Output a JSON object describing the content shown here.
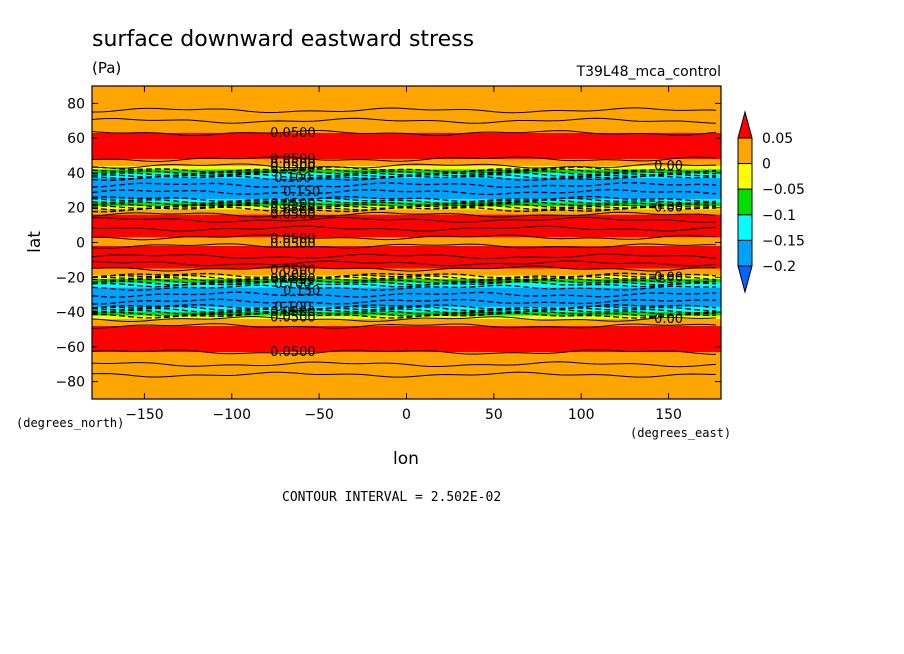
{
  "chart_data": {
    "type": "heatmap",
    "title": "surface downward eastward stress",
    "units": "(Pa)",
    "experiment": "T39L48_mca_control",
    "xlabel": "lon",
    "ylabel": "lat",
    "x_units": "(degrees_east)",
    "y_units": "(degrees_north)",
    "xlim": [
      -180,
      180
    ],
    "ylim": [
      -90,
      90
    ],
    "x_ticks": [
      -150,
      -100,
      -50,
      0,
      50,
      100,
      150
    ],
    "x_tick_labels": [
      "−150",
      "−100",
      "−50",
      "0",
      "50",
      "100",
      "150"
    ],
    "y_ticks": [
      80,
      60,
      40,
      20,
      0,
      -20,
      -40,
      -60,
      -80
    ],
    "y_tick_labels": [
      "80",
      "60",
      "40",
      "20",
      "0",
      "−20",
      "−40",
      "−60",
      "−80"
    ],
    "colorbar": {
      "levels": [
        0.05,
        0,
        -0.05,
        -0.1,
        -0.15,
        -0.2
      ],
      "labels": [
        "0.05",
        "0",
        "−0.05",
        "−0.1",
        "−0.15",
        "−0.2"
      ],
      "colors": [
        "#ff0000",
        "#ffa500",
        "#ffff00",
        "#00e000",
        "#00ffff",
        "#00a0ff",
        "#0064ff"
      ]
    },
    "bands": [
      {
        "lat_max": 90,
        "lat_min": 63,
        "value_class": 1
      },
      {
        "lat_max": 63,
        "lat_min": 48,
        "value_class": 0
      },
      {
        "lat_max": 48,
        "lat_min": 44,
        "value_class": 1
      },
      {
        "lat_max": 44,
        "lat_min": 42,
        "value_class": 2
      },
      {
        "lat_max": 42,
        "lat_min": 40,
        "value_class": 3
      },
      {
        "lat_max": 40,
        "lat_min": 37,
        "value_class": 4
      },
      {
        "lat_max": 37,
        "lat_min": 25,
        "value_class": 5
      },
      {
        "lat_max": 25,
        "lat_min": 23,
        "value_class": 4
      },
      {
        "lat_max": 23,
        "lat_min": 21,
        "value_class": 3
      },
      {
        "lat_max": 21,
        "lat_min": 19,
        "value_class": 2
      },
      {
        "lat_max": 19,
        "lat_min": 16,
        "value_class": 1
      },
      {
        "lat_max": 16,
        "lat_min": 3,
        "value_class": 0
      },
      {
        "lat_max": 3,
        "lat_min": -2,
        "value_class": 1
      },
      {
        "lat_max": -2,
        "lat_min": -15,
        "value_class": 0
      },
      {
        "lat_max": -15,
        "lat_min": -19,
        "value_class": 1
      },
      {
        "lat_max": -19,
        "lat_min": -21,
        "value_class": 2
      },
      {
        "lat_max": -21,
        "lat_min": -23,
        "value_class": 3
      },
      {
        "lat_max": -23,
        "lat_min": -26,
        "value_class": 4
      },
      {
        "lat_max": -26,
        "lat_min": -37,
        "value_class": 5
      },
      {
        "lat_max": -37,
        "lat_min": -40,
        "value_class": 4
      },
      {
        "lat_max": -40,
        "lat_min": -42,
        "value_class": 3
      },
      {
        "lat_max": -42,
        "lat_min": -44,
        "value_class": 2
      },
      {
        "lat_max": -44,
        "lat_min": -48,
        "value_class": 1
      },
      {
        "lat_max": -48,
        "lat_min": -63,
        "value_class": 0
      },
      {
        "lat_max": -63,
        "lat_min": -90,
        "value_class": 1
      }
    ],
    "solid_contours_lat": [
      76,
      70,
      63,
      48,
      44,
      16,
      13,
      8,
      3,
      -2,
      -8,
      -12,
      -15,
      -44,
      -48,
      -63,
      -70,
      -76
    ],
    "dashed_contours_lat": [
      42,
      41,
      40,
      39,
      38,
      37,
      33,
      29,
      25,
      24,
      23,
      22,
      21,
      20,
      19,
      -19,
      -20,
      -21,
      -22,
      -23,
      -24,
      -26,
      -30,
      -34,
      -37,
      -38,
      -39,
      -40,
      -41,
      -42
    ],
    "contour_labels": [
      {
        "text": "0.0500",
        "lon": -65,
        "lat": 63
      },
      {
        "text": "0.0500",
        "lon": -65,
        "lat": 48
      },
      {
        "text": "0.0500",
        "lon": -65,
        "lat": 45
      },
      {
        "text": "0.0500",
        "lon": -65,
        "lat": 43
      },
      {
        "text": "0.100",
        "lon": -65,
        "lat": 37
      },
      {
        "text": "0.150",
        "lon": -60,
        "lat": 29
      },
      {
        "text": "0.0500",
        "lon": -65,
        "lat": 22
      },
      {
        "text": "0.0500",
        "lon": -65,
        "lat": 19
      },
      {
        "text": "0.0500",
        "lon": -65,
        "lat": 16
      },
      {
        "text": "0.0500",
        "lon": -65,
        "lat": 2
      },
      {
        "text": "0.0500",
        "lon": -65,
        "lat": -1
      },
      {
        "text": "0.0500",
        "lon": -65,
        "lat": -16
      },
      {
        "text": "0.00",
        "lon": -65,
        "lat": -19
      },
      {
        "text": "0.0500",
        "lon": -65,
        "lat": -21
      },
      {
        "text": "0.100",
        "lon": -65,
        "lat": -24
      },
      {
        "text": "0.150",
        "lon": -60,
        "lat": -28
      },
      {
        "text": "0.100",
        "lon": -65,
        "lat": -37
      },
      {
        "text": "0.0500",
        "lon": -65,
        "lat": -40
      },
      {
        "text": "0.0500",
        "lon": -65,
        "lat": -43
      },
      {
        "text": "0.0500",
        "lon": -65,
        "lat": -63
      },
      {
        "text": "0.00",
        "lon": 150,
        "lat": 44
      },
      {
        "text": "0.00",
        "lon": 150,
        "lat": 20
      },
      {
        "text": "0.00",
        "lon": 150,
        "lat": -20
      },
      {
        "text": "0.00",
        "lon": 150,
        "lat": -44
      }
    ],
    "footer": "CONTOUR INTERVAL = 2.502E-02"
  }
}
